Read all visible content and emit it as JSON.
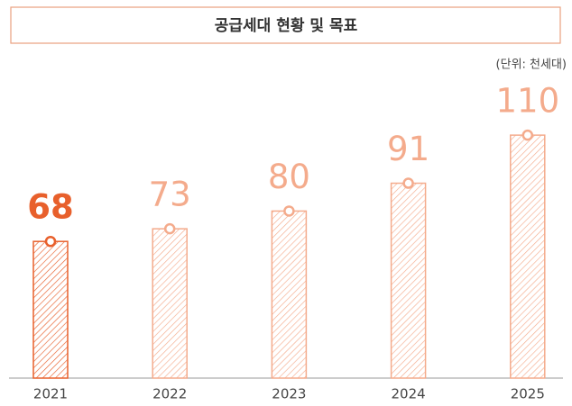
{
  "chart_data": {
    "type": "bar",
    "title": "공급세대 현황 및 목표",
    "unit_label": "(단위: 천세대)",
    "categories": [
      "2021",
      "2022",
      "2023",
      "2024",
      "2025"
    ],
    "values": [
      68,
      73,
      80,
      91,
      110
    ],
    "colors": [
      "#e8602c",
      "#f4ab8c",
      "#f4ab8c",
      "#f4ab8c",
      "#f4ab8c"
    ],
    "highlight_index": 0,
    "ylim": [
      14,
      120
    ]
  }
}
